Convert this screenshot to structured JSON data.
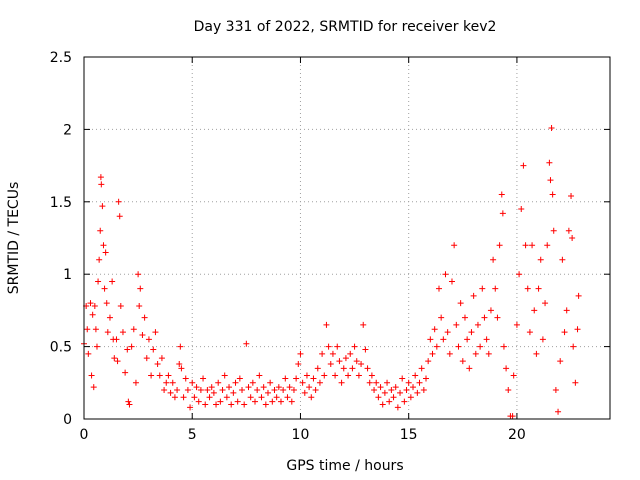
{
  "chart_data": {
    "type": "scatter",
    "title": "Day 331 of 2022, SRMTID for receiver kev2",
    "xlabel": "GPS time / hours",
    "ylabel": "SRMTID / TECUs",
    "xlim": [
      0,
      24.3
    ],
    "ylim": [
      0,
      2.5
    ],
    "xticks": [
      0,
      5,
      10,
      15,
      20
    ],
    "xtick_labels": [
      "0",
      "5",
      "10",
      "15",
      "20"
    ],
    "yticks": [
      0,
      0.5,
      1,
      1.5,
      2,
      2.5
    ],
    "ytick_labels": [
      "0",
      "0.5",
      "1",
      "1.5",
      "2",
      "2.5"
    ],
    "grid": true,
    "marker": "+",
    "series": [
      {
        "name": "SRMTID",
        "color": "#ff0000",
        "points": [
          [
            0.0,
            0.52
          ],
          [
            0.1,
            0.78
          ],
          [
            0.15,
            0.62
          ],
          [
            0.2,
            0.45
          ],
          [
            0.3,
            0.8
          ],
          [
            0.35,
            0.3
          ],
          [
            0.4,
            0.72
          ],
          [
            0.45,
            0.22
          ],
          [
            0.5,
            0.78
          ],
          [
            0.55,
            0.62
          ],
          [
            0.6,
            0.5
          ],
          [
            0.65,
            0.95
          ],
          [
            0.7,
            1.1
          ],
          [
            0.75,
            1.3
          ],
          [
            0.78,
            1.67
          ],
          [
            0.8,
            1.62
          ],
          [
            0.85,
            1.47
          ],
          [
            0.9,
            1.2
          ],
          [
            0.95,
            0.9
          ],
          [
            1.0,
            1.15
          ],
          [
            1.05,
            0.8
          ],
          [
            1.1,
            0.6
          ],
          [
            1.2,
            0.7
          ],
          [
            1.3,
            0.95
          ],
          [
            1.35,
            0.55
          ],
          [
            1.4,
            0.42
          ],
          [
            1.5,
            0.55
          ],
          [
            1.55,
            0.4
          ],
          [
            1.6,
            1.5
          ],
          [
            1.65,
            1.4
          ],
          [
            1.7,
            0.78
          ],
          [
            1.8,
            0.6
          ],
          [
            1.9,
            0.32
          ],
          [
            2.0,
            0.48
          ],
          [
            2.05,
            0.12
          ],
          [
            2.1,
            0.1
          ],
          [
            2.2,
            0.5
          ],
          [
            2.3,
            0.62
          ],
          [
            2.4,
            0.25
          ],
          [
            2.5,
            1.0
          ],
          [
            2.55,
            0.78
          ],
          [
            2.6,
            0.9
          ],
          [
            2.7,
            0.58
          ],
          [
            2.8,
            0.7
          ],
          [
            2.9,
            0.42
          ],
          [
            3.0,
            0.55
          ],
          [
            3.1,
            0.3
          ],
          [
            3.2,
            0.48
          ],
          [
            3.3,
            0.6
          ],
          [
            3.4,
            0.38
          ],
          [
            3.5,
            0.3
          ],
          [
            3.6,
            0.42
          ],
          [
            3.7,
            0.2
          ],
          [
            3.8,
            0.25
          ],
          [
            3.9,
            0.3
          ],
          [
            4.0,
            0.18
          ],
          [
            4.1,
            0.25
          ],
          [
            4.2,
            0.15
          ],
          [
            4.3,
            0.2
          ],
          [
            4.4,
            0.38
          ],
          [
            4.45,
            0.5
          ],
          [
            4.5,
            0.35
          ],
          [
            4.6,
            0.15
          ],
          [
            4.7,
            0.28
          ],
          [
            4.8,
            0.2
          ],
          [
            4.9,
            0.08
          ],
          [
            5.0,
            0.25
          ],
          [
            5.1,
            0.15
          ],
          [
            5.2,
            0.22
          ],
          [
            5.3,
            0.12
          ],
          [
            5.4,
            0.2
          ],
          [
            5.5,
            0.28
          ],
          [
            5.6,
            0.1
          ],
          [
            5.7,
            0.2
          ],
          [
            5.8,
            0.15
          ],
          [
            5.9,
            0.22
          ],
          [
            6.0,
            0.18
          ],
          [
            6.1,
            0.1
          ],
          [
            6.2,
            0.25
          ],
          [
            6.3,
            0.12
          ],
          [
            6.4,
            0.2
          ],
          [
            6.5,
            0.3
          ],
          [
            6.6,
            0.15
          ],
          [
            6.7,
            0.22
          ],
          [
            6.8,
            0.1
          ],
          [
            6.9,
            0.18
          ],
          [
            7.0,
            0.25
          ],
          [
            7.1,
            0.12
          ],
          [
            7.2,
            0.28
          ],
          [
            7.3,
            0.2
          ],
          [
            7.4,
            0.1
          ],
          [
            7.5,
            0.52
          ],
          [
            7.6,
            0.22
          ],
          [
            7.7,
            0.15
          ],
          [
            7.8,
            0.25
          ],
          [
            7.9,
            0.12
          ],
          [
            8.0,
            0.2
          ],
          [
            8.1,
            0.3
          ],
          [
            8.2,
            0.15
          ],
          [
            8.3,
            0.22
          ],
          [
            8.4,
            0.1
          ],
          [
            8.5,
            0.18
          ],
          [
            8.6,
            0.25
          ],
          [
            8.7,
            0.12
          ],
          [
            8.8,
            0.2
          ],
          [
            8.9,
            0.15
          ],
          [
            9.0,
            0.22
          ],
          [
            9.1,
            0.12
          ],
          [
            9.2,
            0.2
          ],
          [
            9.3,
            0.28
          ],
          [
            9.4,
            0.15
          ],
          [
            9.5,
            0.22
          ],
          [
            9.6,
            0.12
          ],
          [
            9.7,
            0.2
          ],
          [
            9.8,
            0.28
          ],
          [
            9.9,
            0.38
          ],
          [
            10.0,
            0.45
          ],
          [
            10.1,
            0.25
          ],
          [
            10.2,
            0.18
          ],
          [
            10.3,
            0.3
          ],
          [
            10.4,
            0.22
          ],
          [
            10.5,
            0.15
          ],
          [
            10.6,
            0.28
          ],
          [
            10.7,
            0.2
          ],
          [
            10.8,
            0.35
          ],
          [
            10.9,
            0.25
          ],
          [
            11.0,
            0.45
          ],
          [
            11.1,
            0.3
          ],
          [
            11.2,
            0.65
          ],
          [
            11.3,
            0.5
          ],
          [
            11.4,
            0.38
          ],
          [
            11.5,
            0.45
          ],
          [
            11.6,
            0.3
          ],
          [
            11.7,
            0.5
          ],
          [
            11.8,
            0.4
          ],
          [
            11.9,
            0.25
          ],
          [
            12.0,
            0.35
          ],
          [
            12.1,
            0.42
          ],
          [
            12.2,
            0.3
          ],
          [
            12.3,
            0.45
          ],
          [
            12.4,
            0.35
          ],
          [
            12.5,
            0.5
          ],
          [
            12.6,
            0.4
          ],
          [
            12.7,
            0.3
          ],
          [
            12.8,
            0.38
          ],
          [
            12.9,
            0.65
          ],
          [
            13.0,
            0.48
          ],
          [
            13.1,
            0.35
          ],
          [
            13.2,
            0.25
          ],
          [
            13.3,
            0.3
          ],
          [
            13.4,
            0.2
          ],
          [
            13.5,
            0.25
          ],
          [
            13.6,
            0.15
          ],
          [
            13.7,
            0.22
          ],
          [
            13.8,
            0.1
          ],
          [
            13.9,
            0.18
          ],
          [
            14.0,
            0.25
          ],
          [
            14.1,
            0.12
          ],
          [
            14.2,
            0.2
          ],
          [
            14.3,
            0.15
          ],
          [
            14.4,
            0.22
          ],
          [
            14.5,
            0.08
          ],
          [
            14.6,
            0.18
          ],
          [
            14.7,
            0.28
          ],
          [
            14.8,
            0.12
          ],
          [
            14.9,
            0.2
          ],
          [
            15.0,
            0.25
          ],
          [
            15.1,
            0.15
          ],
          [
            15.2,
            0.22
          ],
          [
            15.3,
            0.3
          ],
          [
            15.4,
            0.18
          ],
          [
            15.5,
            0.25
          ],
          [
            15.6,
            0.35
          ],
          [
            15.7,
            0.2
          ],
          [
            15.8,
            0.28
          ],
          [
            15.9,
            0.4
          ],
          [
            16.0,
            0.55
          ],
          [
            16.1,
            0.45
          ],
          [
            16.2,
            0.62
          ],
          [
            16.3,
            0.5
          ],
          [
            16.4,
            0.9
          ],
          [
            16.5,
            0.7
          ],
          [
            16.6,
            0.55
          ],
          [
            16.7,
            1.0
          ],
          [
            16.8,
            0.6
          ],
          [
            16.9,
            0.45
          ],
          [
            17.0,
            0.95
          ],
          [
            17.1,
            1.2
          ],
          [
            17.2,
            0.65
          ],
          [
            17.3,
            0.5
          ],
          [
            17.4,
            0.8
          ],
          [
            17.5,
            0.4
          ],
          [
            17.6,
            0.7
          ],
          [
            17.7,
            0.55
          ],
          [
            17.8,
            0.35
          ],
          [
            17.9,
            0.6
          ],
          [
            18.0,
            0.85
          ],
          [
            18.1,
            0.45
          ],
          [
            18.2,
            0.65
          ],
          [
            18.3,
            0.5
          ],
          [
            18.4,
            0.9
          ],
          [
            18.5,
            0.7
          ],
          [
            18.6,
            0.55
          ],
          [
            18.7,
            0.45
          ],
          [
            18.8,
            0.75
          ],
          [
            18.9,
            1.1
          ],
          [
            19.0,
            0.9
          ],
          [
            19.1,
            0.7
          ],
          [
            19.2,
            1.2
          ],
          [
            19.3,
            1.55
          ],
          [
            19.35,
            1.42
          ],
          [
            19.4,
            0.5
          ],
          [
            19.5,
            0.35
          ],
          [
            19.6,
            0.2
          ],
          [
            19.7,
            0.02
          ],
          [
            19.8,
            0.02
          ],
          [
            19.85,
            0.3
          ],
          [
            20.0,
            0.65
          ],
          [
            20.1,
            1.0
          ],
          [
            20.2,
            1.45
          ],
          [
            20.3,
            1.75
          ],
          [
            20.4,
            1.2
          ],
          [
            20.5,
            0.9
          ],
          [
            20.6,
            0.6
          ],
          [
            20.7,
            1.2
          ],
          [
            20.8,
            0.75
          ],
          [
            20.9,
            0.45
          ],
          [
            21.0,
            0.9
          ],
          [
            21.1,
            1.1
          ],
          [
            21.2,
            0.55
          ],
          [
            21.3,
            0.8
          ],
          [
            21.4,
            1.2
          ],
          [
            21.5,
            1.77
          ],
          [
            21.55,
            1.65
          ],
          [
            21.6,
            2.01
          ],
          [
            21.65,
            1.55
          ],
          [
            21.7,
            1.3
          ],
          [
            21.8,
            0.2
          ],
          [
            21.9,
            0.05
          ],
          [
            22.0,
            0.4
          ],
          [
            22.1,
            1.1
          ],
          [
            22.2,
            0.6
          ],
          [
            22.3,
            0.75
          ],
          [
            22.4,
            1.3
          ],
          [
            22.5,
            1.54
          ],
          [
            22.55,
            1.25
          ],
          [
            22.6,
            0.5
          ],
          [
            22.7,
            0.25
          ],
          [
            22.8,
            0.62
          ],
          [
            22.85,
            0.85
          ]
        ]
      }
    ]
  }
}
